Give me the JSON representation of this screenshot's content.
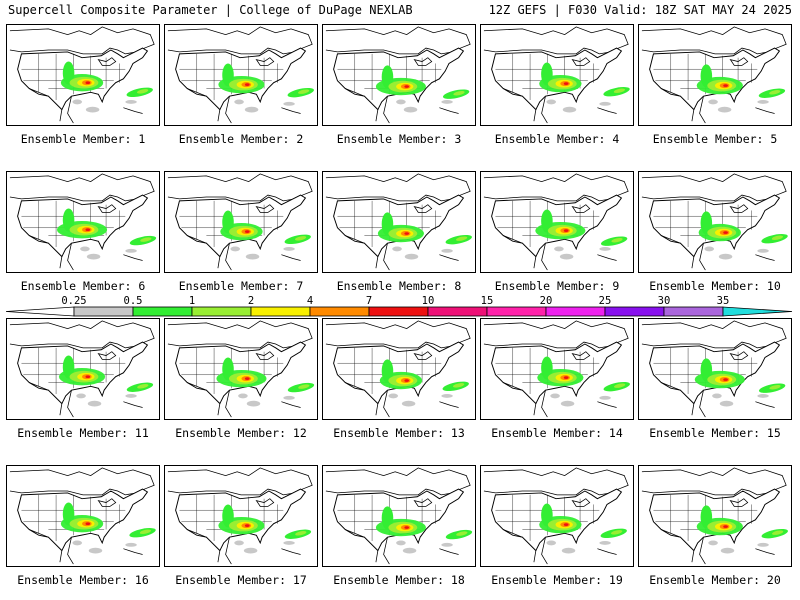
{
  "header": {
    "left": "Supercell Composite Parameter | College of DuPage NEXLAB",
    "right": "12Z GEFS | F030 Valid: 18Z SAT MAY 24 2025"
  },
  "panels": [
    {
      "label": "Ensemble Member: 1"
    },
    {
      "label": "Ensemble Member: 2"
    },
    {
      "label": "Ensemble Member: 3"
    },
    {
      "label": "Ensemble Member: 4"
    },
    {
      "label": "Ensemble Member: 5"
    },
    {
      "label": "Ensemble Member: 6"
    },
    {
      "label": "Ensemble Member: 7"
    },
    {
      "label": "Ensemble Member: 8"
    },
    {
      "label": "Ensemble Member: 9"
    },
    {
      "label": "Ensemble Member: 10"
    },
    {
      "label": "Ensemble Member: 11"
    },
    {
      "label": "Ensemble Member: 12"
    },
    {
      "label": "Ensemble Member: 13"
    },
    {
      "label": "Ensemble Member: 14"
    },
    {
      "label": "Ensemble Member: 15"
    },
    {
      "label": "Ensemble Member: 16"
    },
    {
      "label": "Ensemble Member: 17"
    },
    {
      "label": "Ensemble Member: 18"
    },
    {
      "label": "Ensemble Member: 19"
    },
    {
      "label": "Ensemble Member: 20"
    }
  ],
  "colorbar": {
    "ticks": [
      "0.25",
      "0.5",
      "1",
      "2",
      "4",
      "7",
      "10",
      "15",
      "20",
      "25",
      "30",
      "35"
    ],
    "colors": [
      "#c8c8c8",
      "#33ee33",
      "#99ee33",
      "#f8f000",
      "#ff8a00",
      "#ee1111",
      "#ee1177",
      "#ff22aa",
      "#ee22ee",
      "#8811ee",
      "#aa66dd",
      "#22dddd"
    ]
  },
  "map_colors": {
    "land": "#ffffff",
    "outline": "#000000",
    "gray": "#c8c8c8",
    "green": "#33ee33",
    "lime": "#99ee33",
    "yellow": "#f8f000",
    "orange": "#ff8a00",
    "red": "#ee1111"
  }
}
